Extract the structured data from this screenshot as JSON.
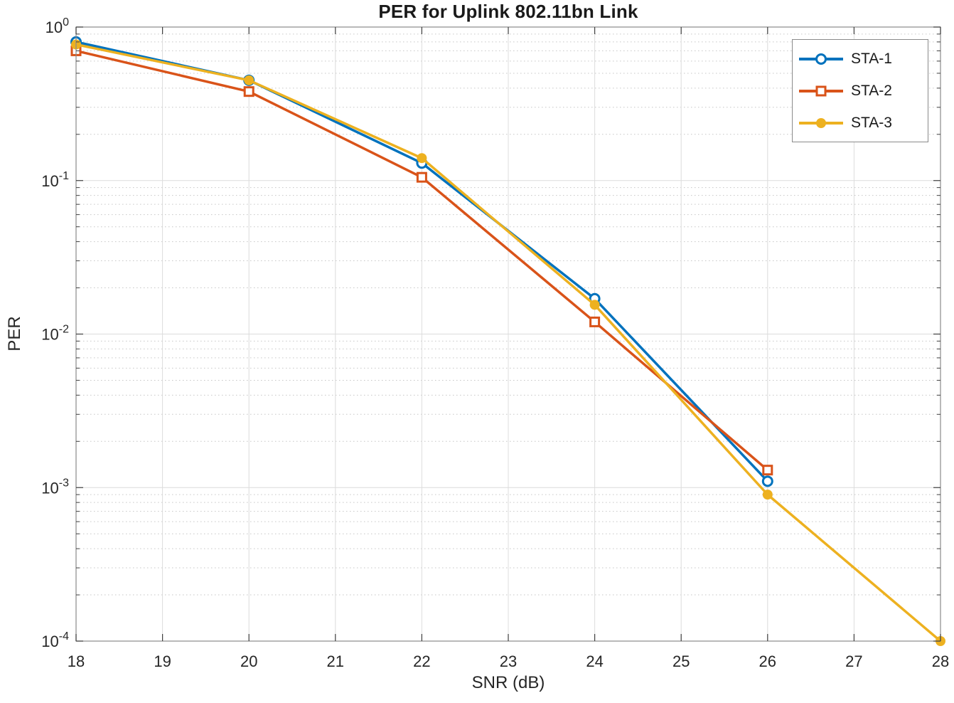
{
  "chart_data": {
    "type": "line",
    "title": "PER for Uplink 802.11bn Link",
    "xlabel": "SNR (dB)",
    "ylabel": "PER",
    "x_scale": "linear",
    "y_scale": "log",
    "xlim": [
      18,
      28
    ],
    "ylim": [
      0.0001,
      1
    ],
    "x_ticks": [
      18,
      19,
      20,
      21,
      22,
      23,
      24,
      25,
      26,
      27,
      28
    ],
    "y_tick_exponents": [
      0,
      -1,
      -2,
      -3,
      -4
    ],
    "grid": "major solid + dotted log minor horizontal gridlines",
    "legend_position": "top-right inside, boxed",
    "series": [
      {
        "name": "STA-1",
        "color": "#0072BD",
        "marker": "open-circle",
        "x": [
          18,
          20,
          22,
          24,
          26
        ],
        "y": [
          0.8,
          0.45,
          0.13,
          0.017,
          0.0011
        ]
      },
      {
        "name": "STA-2",
        "color": "#D95319",
        "marker": "open-square",
        "x": [
          18,
          20,
          22,
          24,
          26
        ],
        "y": [
          0.7,
          0.38,
          0.105,
          0.012,
          0.0013
        ]
      },
      {
        "name": "STA-3",
        "color": "#EDB120",
        "marker": "filled-circle",
        "x": [
          18,
          20,
          22,
          24,
          26,
          28
        ],
        "y": [
          0.77,
          0.45,
          0.14,
          0.0155,
          0.0009,
          0.0001
        ]
      }
    ],
    "colors": {
      "background": "#ffffff",
      "major_grid": "#dcdcdc",
      "minor_grid": "#c6c6c6",
      "frame": "#8a8a8a",
      "tick": "#3f3f3f",
      "tick_label": "#262626",
      "title": "#1a1a1a"
    }
  }
}
